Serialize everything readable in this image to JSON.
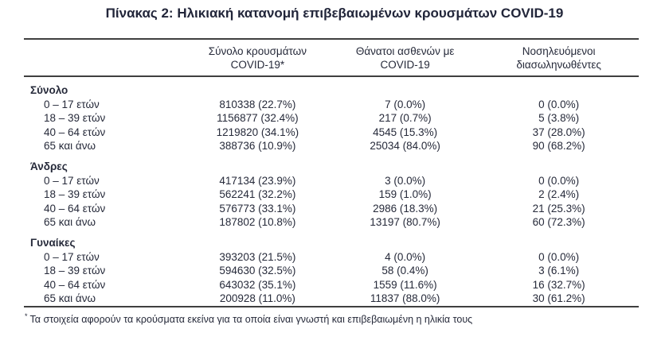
{
  "title": "Πίνακας 2: Ηλικιακή κατανομή επιβεβαιωμένων κρουσμάτων COVID-19",
  "colors": {
    "text": "#262a3a",
    "border": "#3f3f3f",
    "background": "#ffffff"
  },
  "table": {
    "headers": {
      "cases": {
        "line1": "Σύνολο κρουσμάτων",
        "line2": "COVID-19*"
      },
      "deaths": {
        "line1": "Θάνατοι ασθενών με",
        "line2": "COVID-19"
      },
      "intubated": {
        "line1": "Νοσηλευόμενοι",
        "line2": "διασωληνωθέντες"
      }
    },
    "sections": [
      {
        "label": "Σύνολο",
        "rows": [
          {
            "label": "0 – 17 ετών",
            "cases": "810338 (22.7%)",
            "deaths": "7 (0.0%)",
            "intubated": "0 (0.0%)"
          },
          {
            "label": "18 – 39 ετών",
            "cases": "1156877 (32.4%)",
            "deaths": "217 (0.7%)",
            "intubated": "5 (3.8%)"
          },
          {
            "label": "40 – 64 ετών",
            "cases": "1219820 (34.1%)",
            "deaths": "4545 (15.3%)",
            "intubated": "37 (28.0%)"
          },
          {
            "label": "65 και άνω",
            "cases": "388736 (10.9%)",
            "deaths": "25034 (84.0%)",
            "intubated": "90 (68.2%)"
          }
        ]
      },
      {
        "label": "Άνδρες",
        "rows": [
          {
            "label": "0 – 17 ετών",
            "cases": "417134 (23.9%)",
            "deaths": "3 (0.0%)",
            "intubated": "0 (0.0%)"
          },
          {
            "label": "18 – 39 ετών",
            "cases": "562241 (32.2%)",
            "deaths": "159 (1.0%)",
            "intubated": "2 (2.4%)"
          },
          {
            "label": "40 – 64 ετών",
            "cases": "576773 (33.1%)",
            "deaths": "2986 (18.3%)",
            "intubated": "21 (25.3%)"
          },
          {
            "label": "65 και άνω",
            "cases": "187802 (10.8%)",
            "deaths": "13197 (80.7%)",
            "intubated": "60 (72.3%)"
          }
        ]
      },
      {
        "label": "Γυναίκες",
        "rows": [
          {
            "label": "0 – 17 ετών",
            "cases": "393203 (21.5%)",
            "deaths": "4 (0.0%)",
            "intubated": "0 (0.0%)"
          },
          {
            "label": "18 – 39 ετών",
            "cases": "594630 (32.5%)",
            "deaths": "58 (0.4%)",
            "intubated": "3 (6.1%)"
          },
          {
            "label": "40 – 64 ετών",
            "cases": "643032 (35.1%)",
            "deaths": "1559 (11.6%)",
            "intubated": "16 (32.7%)"
          },
          {
            "label": "65 και άνω",
            "cases": "200928 (11.0%)",
            "deaths": "11837 (88.0%)",
            "intubated": "30 (61.2%)"
          }
        ]
      }
    ]
  },
  "footnote": {
    "marker": "*",
    "text": "Τα στοιχεία αφορούν τα κρούσματα εκείνα για τα οποία είναι γνωστή και επιβεβαιωμένη η ηλικία τους"
  }
}
